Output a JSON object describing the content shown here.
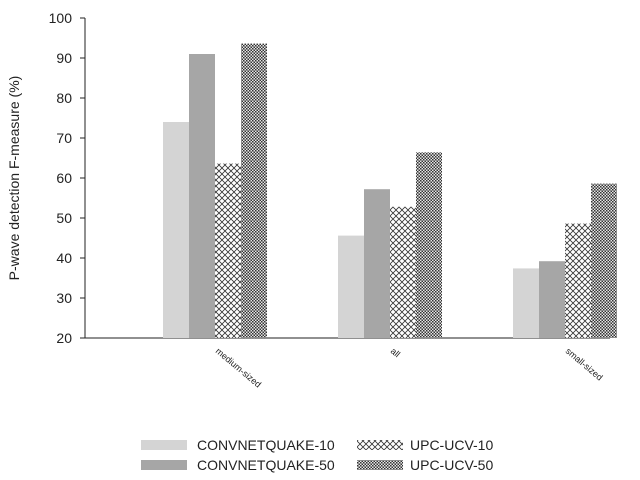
{
  "chart_data": {
    "type": "bar",
    "title": "",
    "xlabel": "",
    "ylabel": "P-wave detection F-measure (%)",
    "ylim": [
      20,
      100
    ],
    "yticks": [
      20,
      30,
      40,
      50,
      60,
      70,
      80,
      90,
      100
    ],
    "categories": [
      "medium-sized",
      "all",
      "small-sized"
    ],
    "series": [
      {
        "name": "CONVNETQUAKE-10",
        "values": [
          74,
          45.6,
          37.4
        ],
        "color": "#d4d4d4",
        "pattern": "solid"
      },
      {
        "name": "CONVNETQUAKE-50",
        "values": [
          91,
          57.2,
          39.2
        ],
        "color": "#a6a6a6",
        "pattern": "solid"
      },
      {
        "name": "UPC-UCV-10",
        "values": [
          63.6,
          52.8,
          48.6
        ],
        "color": "#ffffff",
        "pattern": "crosshatch"
      },
      {
        "name": "UPC-UCV-50",
        "values": [
          93.6,
          66.4,
          58.6
        ],
        "color": "#4d4d4d",
        "pattern": "dense-check"
      }
    ],
    "legend_position": "bottom",
    "grid": false
  }
}
